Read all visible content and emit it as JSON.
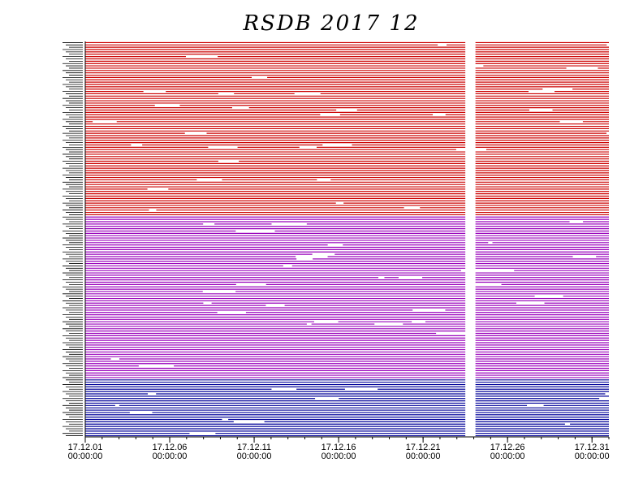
{
  "chart_data": {
    "type": "timeline",
    "title": "RSDB  2017  12",
    "x_ticks": [
      {
        "date": "17.12.01",
        "time": "00:00:00",
        "day": 1
      },
      {
        "date": "17.12.06",
        "time": "00:00:00",
        "day": 6
      },
      {
        "date": "17.12.11",
        "time": "00:00:00",
        "day": 11
      },
      {
        "date": "17.12.16",
        "time": "00:00:00",
        "day": 16
      },
      {
        "date": "17.12.21",
        "time": "00:00:00",
        "day": 21
      },
      {
        "date": "17.12.26",
        "time": "00:00:00",
        "day": 26
      },
      {
        "date": "17.12.31",
        "time": "00:00:00",
        "day": 31
      }
    ],
    "x_range_days": [
      1,
      32
    ],
    "data_gap_days": [
      23.5,
      24.1
    ],
    "series": [
      {
        "color": "#cc0000",
        "station_count": 75
      },
      {
        "color": "#9900bb",
        "station_count": 70
      },
      {
        "color": "#000099",
        "station_count": 25
      }
    ],
    "grid": false
  }
}
